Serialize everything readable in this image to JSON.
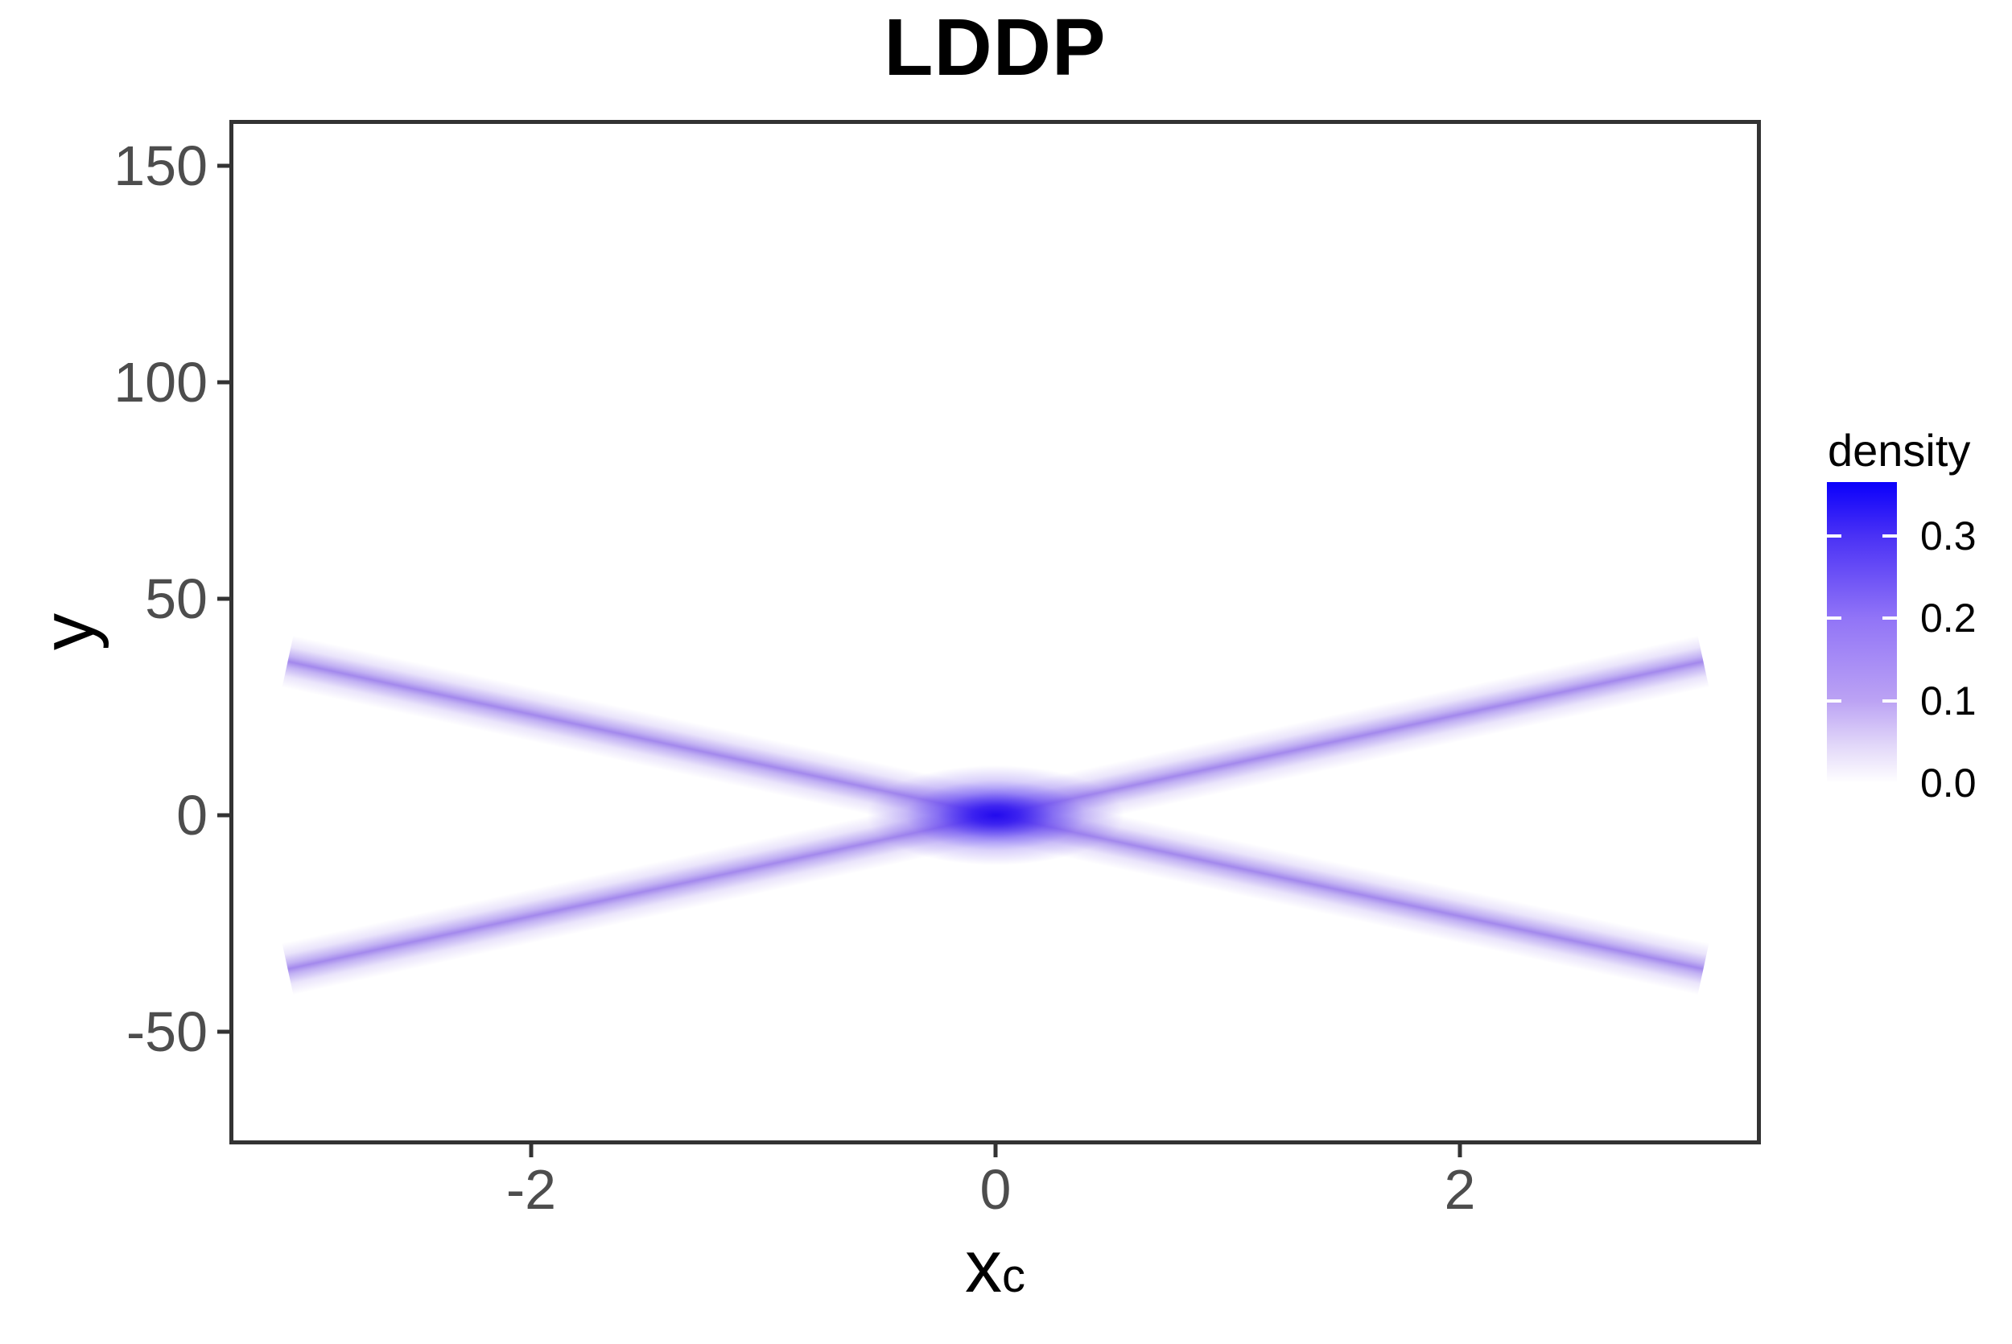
{
  "title": "LDDP",
  "axes": {
    "x_label_base": "x",
    "x_label_sup": "c",
    "y_label": "y"
  },
  "chart_data": {
    "type": "heatmap",
    "title": "LDDP",
    "xlabel": "x^c",
    "ylabel": "y",
    "x_range": [
      -3.3,
      3.3
    ],
    "y_range": [
      -76,
      161
    ],
    "raster_x_extent": [
      -3.05,
      3.05
    ],
    "x_ticks": [
      {
        "value": -2,
        "label": "-2"
      },
      {
        "value": 0,
        "label": "0"
      },
      {
        "value": 2,
        "label": "2"
      }
    ],
    "y_ticks": [
      {
        "value": 150,
        "label": "150"
      },
      {
        "value": 100,
        "label": "100"
      },
      {
        "value": 50,
        "label": "50"
      },
      {
        "value": 0,
        "label": "0"
      },
      {
        "value": -50,
        "label": "-50"
      }
    ],
    "components": [
      {
        "name": "increasing-density-band",
        "equation": "y = 11.7x",
        "from": [
          -3.05,
          -35.7
        ],
        "to": [
          3.05,
          35.7
        ]
      },
      {
        "name": "decreasing-density-band",
        "equation": "y = -11.7x",
        "from": [
          -3.05,
          35.7
        ],
        "to": [
          3.05,
          -35.7
        ]
      }
    ],
    "max_density": 0.37,
    "max_density_at": [
      0,
      0
    ],
    "grid": "off",
    "legend": {
      "title": "density",
      "position": "right",
      "ticks": [
        {
          "value": 0.3,
          "label": "0.3"
        },
        {
          "value": 0.2,
          "label": "0.2"
        },
        {
          "value": 0.1,
          "label": "0.1"
        },
        {
          "value": 0.0,
          "label": "0.0"
        }
      ]
    },
    "colors": {
      "density_high": "#0b00fb",
      "density_mid": "#9174f7",
      "density_low": "#ffffff",
      "band_core": "#9e84ec",
      "cross_core": "#2008ee",
      "tick_label": "#4d4d4d",
      "axis_text": "#000000",
      "panel_border": "#333333",
      "background": "#ffffff"
    }
  }
}
